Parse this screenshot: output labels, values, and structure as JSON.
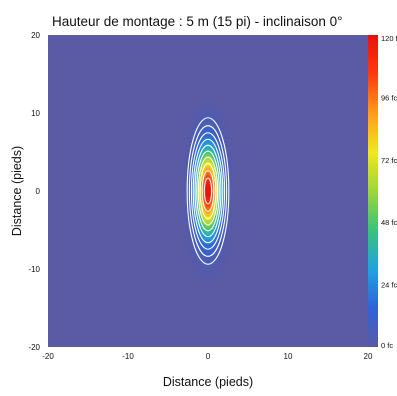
{
  "chart_data": {
    "type": "heatmap",
    "title": "Hauteur de montage : 5 m (15 pi) - inclinaison 0°",
    "xlabel": "Distance (pieds)",
    "ylabel": "Distance (pieds)",
    "xlim": [
      -20,
      20
    ],
    "ylim": [
      -20,
      20
    ],
    "x_ticks": [
      -20,
      -10,
      0,
      10,
      20
    ],
    "y_ticks": [
      20,
      10,
      0,
      -10,
      -20
    ],
    "x_tick_labels": [
      "-20",
      "-10",
      "0",
      "10",
      "20"
    ],
    "y_tick_labels": [
      "20",
      "10",
      "0",
      "-10",
      "-20"
    ],
    "colorbar": {
      "min": 0,
      "max": 120,
      "unit": "fc",
      "ticks": [
        0,
        24,
        48,
        72,
        96,
        120
      ],
      "tick_labels": [
        "0 fc",
        "24 fc",
        "48 fc",
        "72 fc",
        "96 fc",
        "120 f"
      ],
      "colors": [
        "#5a5aa5",
        "#2f63d8",
        "#1fa3e0",
        "#3bc27a",
        "#9ed63a",
        "#f0e81c",
        "#ff9b1a",
        "#ff3a10",
        "#e8100c"
      ]
    },
    "background_color": "#5a5aa5",
    "peak": {
      "x": 0,
      "y": 0,
      "value": 120
    },
    "distribution": {
      "sigma_x_ft": 1.0,
      "sigma_y_ft": 3.6
    },
    "contour_levels_fc": [
      4,
      8,
      14,
      22,
      32,
      44,
      58,
      74,
      92,
      108
    ]
  }
}
